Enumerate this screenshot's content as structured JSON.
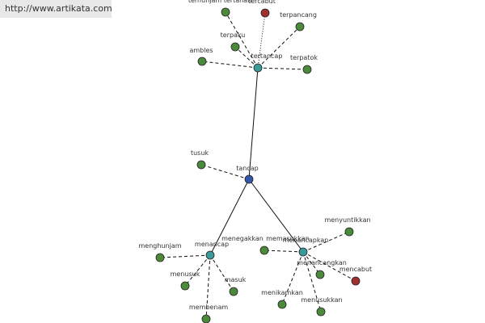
{
  "watermark": "http://www.artikata.com",
  "nodes": [
    {
      "label": "tancap"
    },
    {
      "label": "tertancap"
    },
    {
      "label": "menancap"
    },
    {
      "label": "menancapkan"
    },
    {
      "label": "terhunjam tertahan"
    },
    {
      "label": "tercabut"
    },
    {
      "label": "terpancang"
    },
    {
      "label": "terpaku"
    },
    {
      "label": "ambles"
    },
    {
      "label": "terpatok"
    },
    {
      "label": "tusuk"
    },
    {
      "label": "menghunjam"
    },
    {
      "label": "menusuk"
    },
    {
      "label": "masuk"
    },
    {
      "label": "membenam"
    },
    {
      "label": "menyuntikkan"
    },
    {
      "label": "menegakkan"
    },
    {
      "label": "memasukkan"
    },
    {
      "label": "menancangkan"
    },
    {
      "label": "mencabut"
    },
    {
      "label": "menikamkan"
    },
    {
      "label": "menusukkan"
    }
  ]
}
